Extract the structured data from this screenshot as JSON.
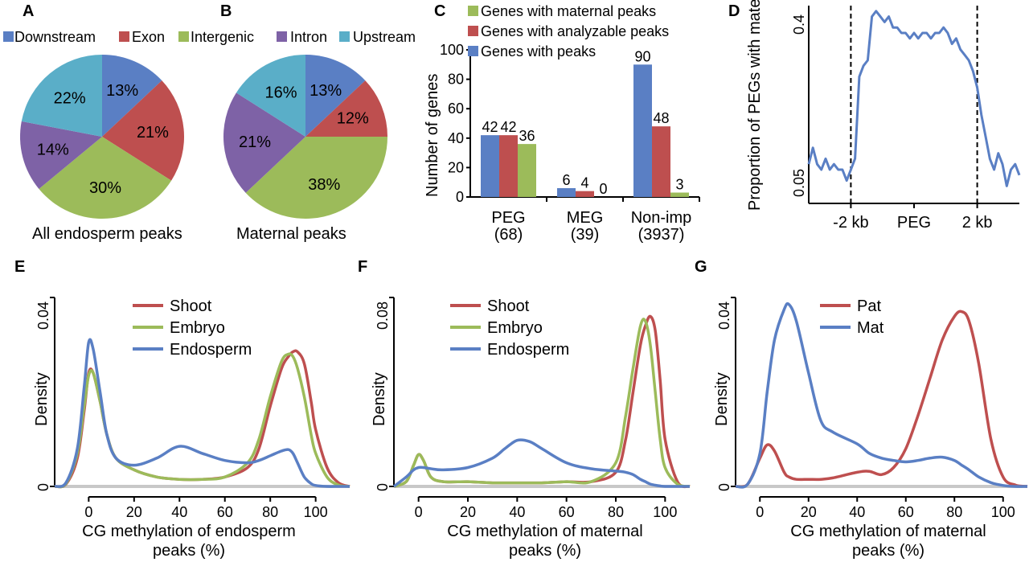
{
  "colors": {
    "downstream": "#5a7fc4",
    "exon": "#be4f4f",
    "intergenic": "#9cbb5a",
    "intron": "#7e62a6",
    "upstream": "#5aaec8",
    "blue": "#5a7fc4",
    "red": "#be4f4f",
    "green": "#9cbb5a",
    "axis": "#000000",
    "baseline": "#c8c8c8"
  },
  "panel_letters": [
    "A",
    "B",
    "C",
    "D",
    "E",
    "F",
    "G"
  ],
  "pie_legend": {
    "items": [
      {
        "label": "Downstream",
        "color": "#5a7fc4"
      },
      {
        "label": "Exon",
        "color": "#be4f4f"
      },
      {
        "label": "Intergenic",
        "color": "#9cbb5a"
      },
      {
        "label": "Intron",
        "color": "#7e62a6"
      },
      {
        "label": "Upstream",
        "color": "#5aaec8"
      }
    ]
  },
  "chart_data": [
    {
      "panel": "A",
      "type": "pie",
      "title": "All endosperm peaks",
      "labels": [
        "Downstream",
        "Exon",
        "Intergenic",
        "Intron",
        "Upstream"
      ],
      "values": [
        13,
        21,
        30,
        14,
        22
      ],
      "value_labels": [
        "13%",
        "21%",
        "30%",
        "14%",
        "22%"
      ]
    },
    {
      "panel": "B",
      "type": "pie",
      "title": "Maternal peaks",
      "labels": [
        "Downstream",
        "Exon",
        "Intergenic",
        "Intron",
        "Upstream"
      ],
      "values": [
        13,
        12,
        38,
        21,
        16
      ],
      "value_labels": [
        "13%",
        "12%",
        "38%",
        "21%",
        "16%"
      ]
    },
    {
      "panel": "C",
      "type": "bar",
      "ylabel": "Number of genes",
      "ylim": [
        0,
        100
      ],
      "yticks": [
        "0",
        "20",
        "40",
        "60",
        "80",
        "100"
      ],
      "categories": [
        "PEG",
        "MEG",
        "Non-imp"
      ],
      "category_counts": [
        "(68)",
        "(39)",
        "(3937)"
      ],
      "series": [
        {
          "name": "Genes with  peaks",
          "color": "#5a7fc4",
          "values": [
            42,
            6,
            90
          ],
          "labels": [
            "42",
            "6",
            "90"
          ]
        },
        {
          "name": "Genes with analyzable peaks",
          "color": "#be4f4f",
          "values": [
            42,
            4,
            48
          ],
          "labels": [
            "42",
            "4",
            "48"
          ]
        },
        {
          "name": "Genes with maternal  peaks",
          "color": "#9cbb5a",
          "values": [
            36,
            0,
            3
          ],
          "labels": [
            "36",
            "0",
            "3"
          ]
        }
      ],
      "legend_order": [
        "Genes with maternal  peaks",
        "Genes with analyzable peaks",
        "Genes with  peaks"
      ]
    },
    {
      "panel": "D",
      "type": "line",
      "ylabel": "Proportion of PEGs with maternal peaks",
      "ytick_labels": [
        "0.05",
        "0.4"
      ],
      "ylim": [
        0.05,
        0.4
      ],
      "xtick_labels": [
        "-2 kb",
        "PEG",
        "2 kb"
      ],
      "dashed_lines_at": [
        "gene start",
        "gene end"
      ],
      "color": "#5a7fc4",
      "x": [
        0,
        2,
        4,
        6,
        8,
        10,
        12,
        14,
        16,
        18,
        20,
        22,
        24,
        26,
        28,
        30,
        32,
        34,
        36,
        38,
        40,
        42,
        44,
        46,
        48,
        50,
        52,
        54,
        56,
        58,
        60,
        62,
        64,
        66,
        68,
        70,
        72,
        74,
        76,
        78,
        80,
        82,
        84,
        86,
        88,
        90,
        92,
        94,
        96,
        98,
        100
      ],
      "y": [
        0.11,
        0.14,
        0.11,
        0.1,
        0.12,
        0.1,
        0.11,
        0.1,
        0.1,
        0.08,
        0.1,
        0.12,
        0.27,
        0.29,
        0.3,
        0.38,
        0.39,
        0.38,
        0.37,
        0.38,
        0.36,
        0.36,
        0.35,
        0.35,
        0.34,
        0.35,
        0.34,
        0.35,
        0.35,
        0.34,
        0.35,
        0.35,
        0.36,
        0.35,
        0.33,
        0.34,
        0.32,
        0.31,
        0.3,
        0.28,
        0.25,
        0.2,
        0.16,
        0.12,
        0.1,
        0.13,
        0.11,
        0.07,
        0.1,
        0.11,
        0.09
      ]
    },
    {
      "panel": "E",
      "type": "line",
      "xlabel": "CG methylation of endosperm peaks (%)",
      "ylabel": "Density",
      "xlim": [
        -15,
        115
      ],
      "ylim": [
        0,
        0.04
      ],
      "xticks": [
        "0",
        "20",
        "40",
        "60",
        "80",
        "100"
      ],
      "ytick_labels": [
        "0",
        "0.04"
      ],
      "x": [
        -15,
        -10,
        -5,
        -2,
        0,
        2,
        5,
        8,
        12,
        20,
        30,
        40,
        50,
        60,
        70,
        75,
        80,
        85,
        88,
        90,
        92,
        95,
        98,
        100,
        105,
        110,
        115
      ],
      "series": [
        {
          "name": "Shoot",
          "color": "#be4f4f",
          "values": [
            0,
            0.0005,
            0.006,
            0.016,
            0.024,
            0.024,
            0.018,
            0.011,
            0.006,
            0.0035,
            0.002,
            0.0015,
            0.0015,
            0.002,
            0.004,
            0.008,
            0.017,
            0.025,
            0.0275,
            0.0285,
            0.0285,
            0.026,
            0.018,
            0.012,
            0.004,
            0.0008,
            0
          ]
        },
        {
          "name": "Embryo",
          "color": "#9cbb5a",
          "values": [
            0,
            0.0006,
            0.007,
            0.017,
            0.0235,
            0.024,
            0.018,
            0.011,
            0.006,
            0.0035,
            0.002,
            0.0015,
            0.0015,
            0.002,
            0.005,
            0.01,
            0.019,
            0.0265,
            0.028,
            0.0275,
            0.025,
            0.019,
            0.011,
            0.007,
            0.002,
            0.0003,
            0
          ]
        },
        {
          "name": "Endosperm",
          "color": "#5a7fc4",
          "values": [
            0,
            0.0008,
            0.008,
            0.021,
            0.0305,
            0.029,
            0.02,
            0.011,
            0.006,
            0.0045,
            0.006,
            0.0085,
            0.007,
            0.0055,
            0.005,
            0.0055,
            0.0065,
            0.0075,
            0.0078,
            0.007,
            0.005,
            0.002,
            0.0006,
            0.0002,
            0,
            0,
            0
          ]
        }
      ]
    },
    {
      "panel": "F",
      "type": "line",
      "xlabel": "CG methylation of maternal peaks (%)",
      "ylabel": "Density",
      "xlim": [
        -10,
        110
      ],
      "ylim": [
        0,
        0.08
      ],
      "xticks": [
        "0",
        "20",
        "40",
        "60",
        "80",
        "100"
      ],
      "ytick_labels": [
        "0",
        "0.08"
      ],
      "x": [
        -10,
        -5,
        -2,
        0,
        2,
        5,
        10,
        20,
        30,
        35,
        40,
        45,
        50,
        60,
        70,
        80,
        84,
        87,
        90,
        92,
        94,
        96,
        98,
        100,
        105,
        110
      ],
      "series": [
        {
          "name": "Shoot",
          "color": "#be4f4f",
          "values": [
            0,
            0.002,
            0.009,
            0.0135,
            0.011,
            0.004,
            0.002,
            0.002,
            0.0015,
            0.0015,
            0.0015,
            0.0015,
            0.0015,
            0.002,
            0.002,
            0.006,
            0.02,
            0.04,
            0.06,
            0.068,
            0.072,
            0.066,
            0.045,
            0.02,
            0.002,
            0
          ]
        },
        {
          "name": "Embryo",
          "color": "#9cbb5a",
          "values": [
            0,
            0.002,
            0.009,
            0.0135,
            0.011,
            0.004,
            0.002,
            0.002,
            0.0015,
            0.0015,
            0.0015,
            0.0015,
            0.0015,
            0.002,
            0.002,
            0.01,
            0.03,
            0.05,
            0.068,
            0.07,
            0.06,
            0.04,
            0.02,
            0.008,
            0.001,
            0
          ]
        },
        {
          "name": "Endosperm",
          "color": "#5a7fc4",
          "values": [
            0,
            0.004,
            0.007,
            0.008,
            0.008,
            0.0075,
            0.007,
            0.008,
            0.012,
            0.016,
            0.0195,
            0.019,
            0.016,
            0.01,
            0.0075,
            0.0065,
            0.006,
            0.005,
            0.003,
            0.002,
            0.001,
            0.0005,
            0.0002,
            0,
            0,
            0
          ]
        }
      ]
    },
    {
      "panel": "G",
      "type": "line",
      "xlabel": "CG methylation of maternal peaks (%)",
      "ylabel": "Density",
      "xlim": [
        -10,
        110
      ],
      "ylim": [
        0,
        0.04
      ],
      "xticks": [
        "0",
        "20",
        "40",
        "60",
        "80",
        "100"
      ],
      "ytick_labels": [
        "0",
        "0.04"
      ],
      "x": [
        -10,
        -5,
        0,
        3,
        6,
        10,
        12,
        15,
        20,
        25,
        30,
        40,
        45,
        50,
        55,
        60,
        65,
        70,
        75,
        80,
        83,
        86,
        90,
        95,
        100,
        105,
        110
      ],
      "series": [
        {
          "name": "Pat",
          "color": "#be4f4f",
          "values": [
            0,
            0.0005,
            0.006,
            0.0088,
            0.0075,
            0.003,
            0.002,
            0.0015,
            0.0015,
            0.0015,
            0.0018,
            0.003,
            0.0032,
            0.0025,
            0.004,
            0.008,
            0.015,
            0.023,
            0.031,
            0.036,
            0.037,
            0.035,
            0.026,
            0.01,
            0.002,
            0.0003,
            0
          ]
        },
        {
          "name": "Mat",
          "color": "#5a7fc4",
          "values": [
            0,
            0.0005,
            0.007,
            0.02,
            0.031,
            0.0375,
            0.0385,
            0.035,
            0.024,
            0.014,
            0.0115,
            0.009,
            0.007,
            0.006,
            0.0055,
            0.0052,
            0.0055,
            0.006,
            0.0062,
            0.0055,
            0.0045,
            0.0035,
            0.002,
            0.0008,
            0.0002,
            0,
            0
          ]
        }
      ]
    }
  ]
}
